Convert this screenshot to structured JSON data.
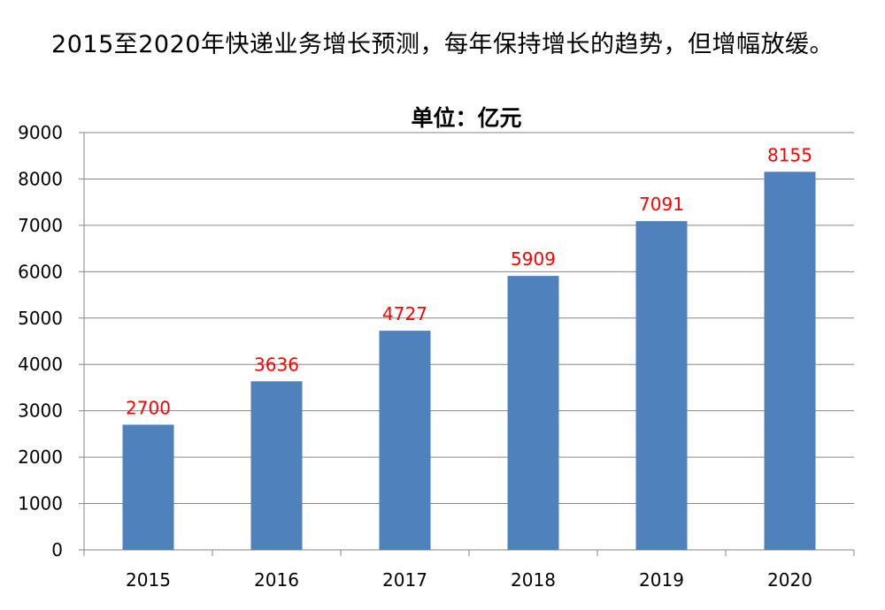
{
  "page": {
    "headline": "2015至2020年快递业务增长预测，每年保持增长的趋势，但增幅放缓。"
  },
  "chart_data": {
    "type": "bar",
    "title": "单位：亿元",
    "categories": [
      "2015",
      "2016",
      "2017",
      "2018",
      "2019",
      "2020"
    ],
    "series": [
      {
        "values": [
          2700,
          3636,
          4727,
          5909,
          7091,
          8155
        ]
      }
    ],
    "ylim": [
      0,
      9000
    ],
    "y_ticks": [
      0,
      1000,
      2000,
      3000,
      4000,
      5000,
      6000,
      7000,
      8000,
      9000
    ],
    "grid": true,
    "data_labels": true,
    "colors": {
      "bar": "#4F81BD",
      "data_label": "#FF0000",
      "grid": "#868686",
      "axis": "#868686"
    }
  }
}
